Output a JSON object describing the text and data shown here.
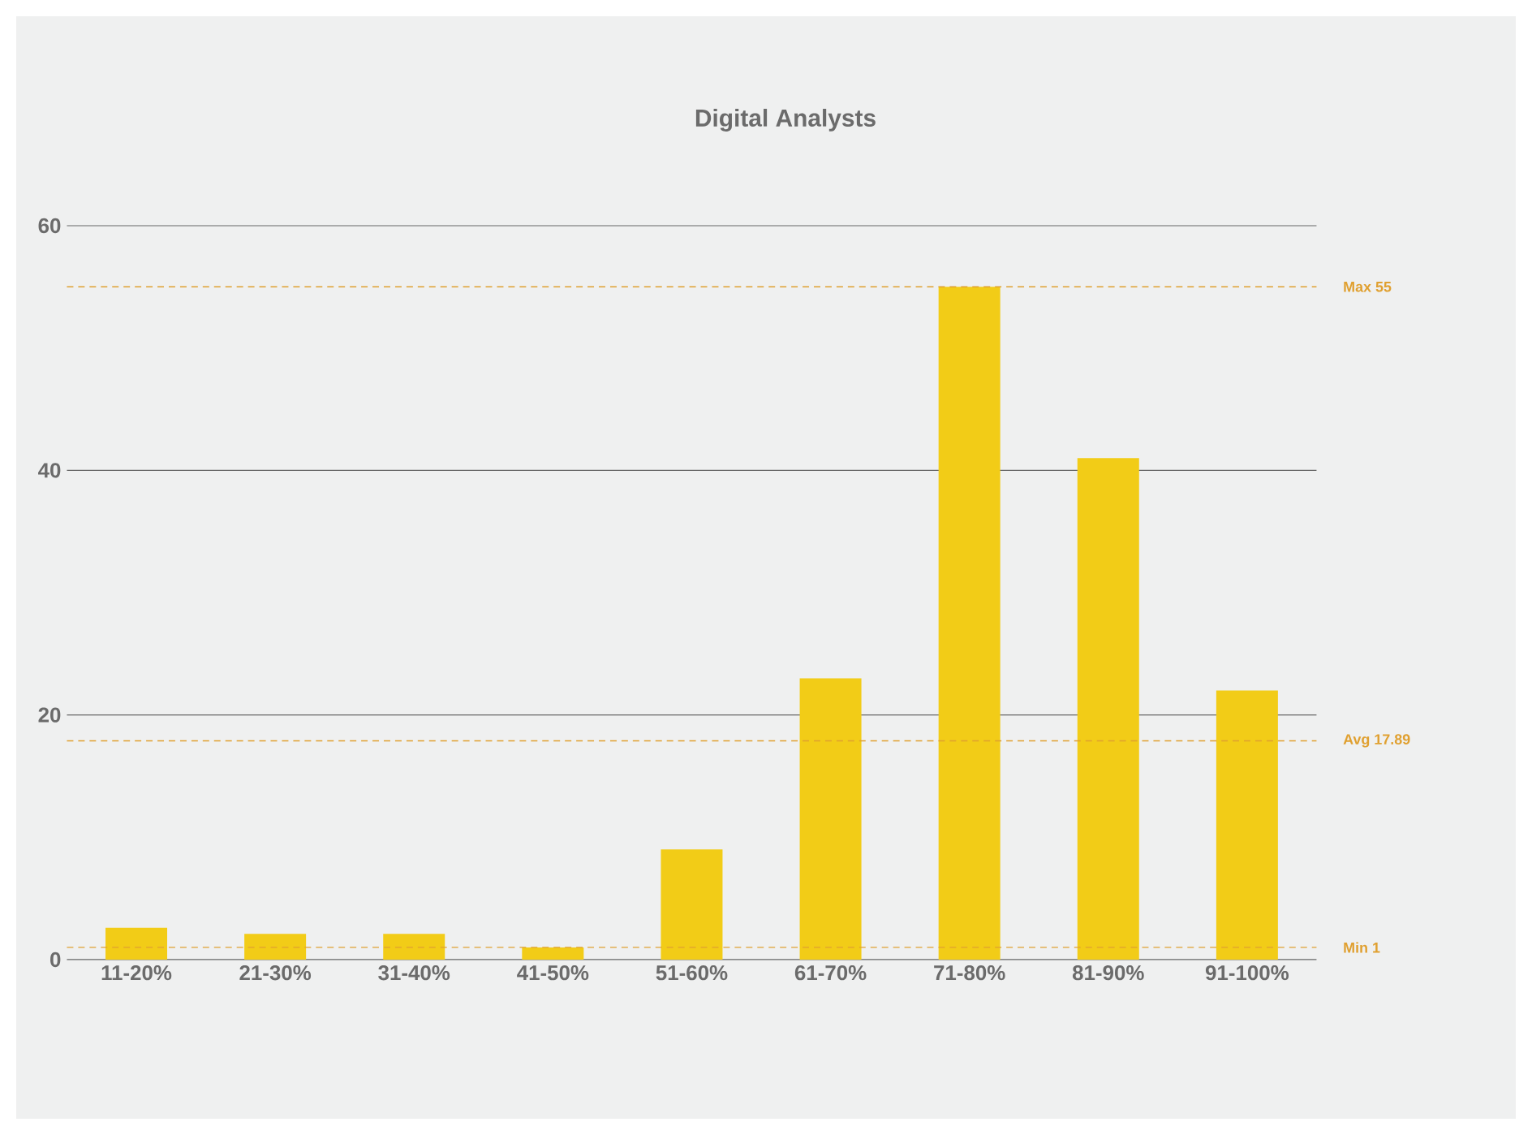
{
  "chart_data": {
    "type": "bar",
    "title": "Digital Analysts",
    "categories": [
      "11-20%",
      "21-30%",
      "31-40%",
      "41-50%",
      "51-60%",
      "61-70%",
      "71-80%",
      "81-90%",
      "91-100%"
    ],
    "values": [
      2.6,
      2.1,
      2.1,
      1,
      9,
      23,
      55,
      41,
      22
    ],
    "color": "#f2cc17",
    "ylim": [
      0,
      60
    ],
    "yticks": [
      0,
      20,
      40,
      60
    ],
    "grid": "y",
    "ref_lines": [
      {
        "axis": "y",
        "value": 55,
        "label": "Max 55",
        "color": "#e0a030",
        "line_style": "dashed"
      },
      {
        "axis": "y",
        "value": 17.89,
        "label": "Avg 17.89",
        "color": "#e0a030",
        "line_style": "dashed"
      },
      {
        "axis": "y",
        "value": 1,
        "label": "Min 1",
        "color": "#e0a030",
        "line_style": "dashed"
      }
    ]
  }
}
